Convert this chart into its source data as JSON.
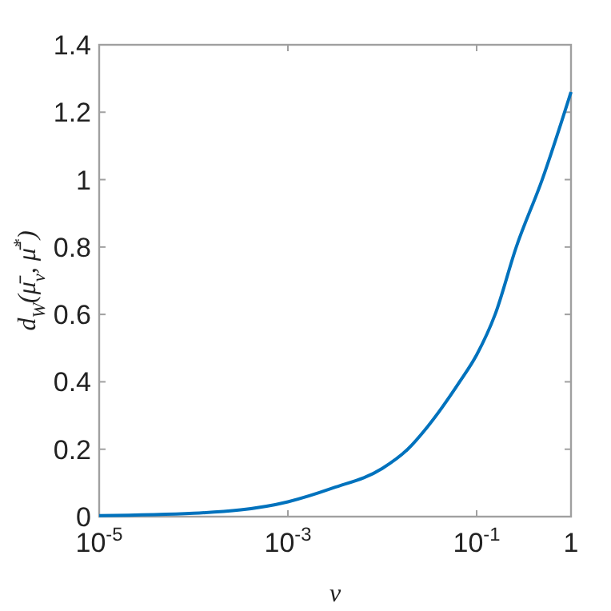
{
  "chart_data": {
    "type": "line",
    "xlabel": "ν",
    "ylabel": "d$_{W}$(μ̄$_{ν}$, μ̄$^{*}$)",
    "log": "x",
    "x": [
      1e-05,
      0.0001,
      0.001,
      0.003,
      0.01,
      0.0186,
      0.03,
      0.066,
      0.1,
      0.157,
      0.263,
      0.495,
      1
    ],
    "series": [
      {
        "color": "#0072bd",
        "values": [
          0.003,
          0.01,
          0.044,
          0.085,
          0.143,
          0.2,
          0.266,
          0.4,
          0.48,
          0.6,
          0.8,
          1.0,
          1.26
        ]
      }
    ],
    "xlim": [
      1e-05,
      1
    ],
    "ylim": [
      0,
      1.4
    ],
    "xticks": [
      {
        "value": 1e-05,
        "label": "10$^{-5}$"
      },
      {
        "value": 0.001,
        "label": "10$^{-3}$"
      },
      {
        "value": 0.1,
        "label": "10$^{-1}$"
      },
      1
    ],
    "yticks": [
      0,
      0.2,
      0.4,
      0.6,
      0.8,
      1,
      1.2,
      1.4
    ],
    "grid": false,
    "marker": "none",
    "line_style": "solid"
  }
}
